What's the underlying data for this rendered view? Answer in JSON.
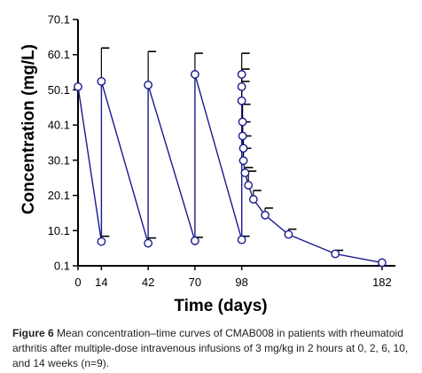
{
  "chart_data": {
    "type": "line",
    "ylabel": "Concentration (mg/L)",
    "xlabel": "Time (days)",
    "x_ticks": [
      0,
      14,
      42,
      70,
      98,
      182
    ],
    "y_ticks": [
      0.1,
      10.1,
      20.1,
      30.1,
      40.1,
      50.1,
      60.1,
      70.1
    ],
    "xlim": [
      0,
      190
    ],
    "ylim": [
      0.1,
      70.1
    ],
    "series": [
      {
        "color": "#1a1a8c",
        "marker": "open-circle",
        "points": [
          {
            "x": 0,
            "y": 51.0,
            "err": 0
          },
          {
            "x": 14,
            "y": 7.0,
            "err": 1.5
          },
          {
            "x": 14,
            "y": 52.5,
            "err": 9.5
          },
          {
            "x": 42,
            "y": 6.5,
            "err": 1.5
          },
          {
            "x": 42,
            "y": 51.5,
            "err": 9.5
          },
          {
            "x": 70,
            "y": 7.2,
            "err": 1.0
          },
          {
            "x": 70,
            "y": 54.5,
            "err": 6.0
          },
          {
            "x": 98,
            "y": 7.5,
            "err": 1.0
          },
          {
            "x": 98,
            "y": 54.5,
            "err": 6.0
          },
          {
            "x": 98,
            "y": 51.0,
            "err": 5.0
          },
          {
            "x": 98,
            "y": 47.0,
            "err": 5.5
          },
          {
            "x": 98.5,
            "y": 41.0,
            "err": 5.0
          },
          {
            "x": 98.5,
            "y": 37.0,
            "err": 4.0
          },
          {
            "x": 99,
            "y": 33.5,
            "err": 3.5
          },
          {
            "x": 99,
            "y": 30.0,
            "err": 3.5
          },
          {
            "x": 100,
            "y": 26.5,
            "err": 1.5
          },
          {
            "x": 102,
            "y": 23.0,
            "err": 4.0
          },
          {
            "x": 105,
            "y": 19.0,
            "err": 2.5
          },
          {
            "x": 112,
            "y": 14.5,
            "err": 2.0
          },
          {
            "x": 126,
            "y": 9.0,
            "err": 1.5
          },
          {
            "x": 154,
            "y": 3.5,
            "err": 1.0
          },
          {
            "x": 182,
            "y": 1.0,
            "err": 0
          }
        ]
      }
    ]
  },
  "caption": {
    "label": "Figure 6",
    "text": "Mean concentration–time curves of CMAB008 in patients with rheumatoid arthritis after multiple-dose intravenous infusions of 3 mg/kg in 2 hours at 0, 2, 6, 10, and 14 weeks (n=9)."
  }
}
